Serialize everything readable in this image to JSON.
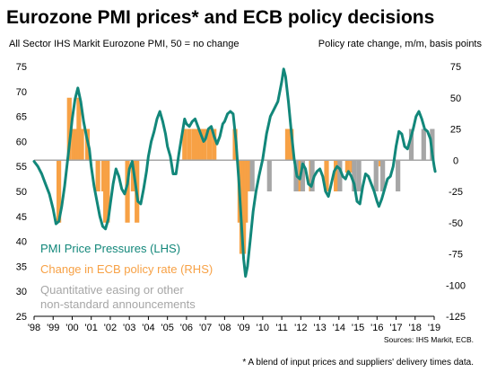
{
  "chart_data": {
    "type": "line",
    "title": "Eurozone PMI prices* and ECB policy decisions",
    "left_axis_label": "All Sector IHS Markit Eurozone PMI, 50 = no change",
    "right_axis_label": "Policy rate change, m/m, basis points",
    "left_ylim": [
      25,
      75
    ],
    "right_ylim": [
      -125,
      75
    ],
    "left_ticks": [
      "75",
      "70",
      "65",
      "60",
      "55",
      "50",
      "45",
      "40",
      "35",
      "30",
      "25"
    ],
    "right_ticks": [
      "75",
      "50",
      "25",
      "0",
      "-25",
      "-50",
      "-75",
      "-100",
      "-125"
    ],
    "x_ticks": [
      "'98",
      "'99",
      "'00",
      "'01",
      "'02",
      "'03",
      "'04",
      "'05",
      "'06",
      "'07",
      "'08",
      "'09",
      "'10",
      "'11",
      "'12",
      "'13",
      "'14",
      "'15",
      "'16",
      "'17",
      "'18",
      "'19"
    ],
    "x_range": [
      1998.0,
      2019.0
    ],
    "grid": false,
    "series": [
      {
        "name": "PMI  Price Pressures (LHS)",
        "color": "#12877a",
        "axis": "left",
        "points": [
          [
            1998.0,
            56.0
          ],
          [
            1998.2,
            55.0
          ],
          [
            1998.4,
            53.5
          ],
          [
            1998.6,
            51.5
          ],
          [
            1998.8,
            49.5
          ],
          [
            1999.0,
            46.5
          ],
          [
            1999.15,
            43.5
          ],
          [
            1999.3,
            44.0
          ],
          [
            1999.45,
            47.0
          ],
          [
            1999.6,
            51.0
          ],
          [
            1999.75,
            56.0
          ],
          [
            1999.9,
            61.0
          ],
          [
            2000.0,
            64.5
          ],
          [
            2000.15,
            68.5
          ],
          [
            2000.3,
            70.7
          ],
          [
            2000.45,
            68.0
          ],
          [
            2000.6,
            64.0
          ],
          [
            2000.75,
            61.0
          ],
          [
            2000.9,
            58.5
          ],
          [
            2001.0,
            55.0
          ],
          [
            2001.15,
            51.0
          ],
          [
            2001.3,
            48.0
          ],
          [
            2001.45,
            45.0
          ],
          [
            2001.6,
            43.0
          ],
          [
            2001.75,
            42.5
          ],
          [
            2001.9,
            44.5
          ],
          [
            2002.0,
            47.5
          ],
          [
            2002.15,
            51.5
          ],
          [
            2002.3,
            54.5
          ],
          [
            2002.45,
            53.0
          ],
          [
            2002.6,
            50.5
          ],
          [
            2002.75,
            49.5
          ],
          [
            2002.9,
            51.5
          ],
          [
            2003.0,
            54.5
          ],
          [
            2003.15,
            56.0
          ],
          [
            2003.3,
            52.0
          ],
          [
            2003.45,
            48.0
          ],
          [
            2003.6,
            47.5
          ],
          [
            2003.75,
            50.5
          ],
          [
            2003.9,
            54.0
          ],
          [
            2004.0,
            57.0
          ],
          [
            2004.15,
            60.0
          ],
          [
            2004.3,
            62.0
          ],
          [
            2004.45,
            64.5
          ],
          [
            2004.6,
            66.0
          ],
          [
            2004.75,
            64.0
          ],
          [
            2004.9,
            61.5
          ],
          [
            2005.0,
            59.0
          ],
          [
            2005.15,
            57.0
          ],
          [
            2005.3,
            53.5
          ],
          [
            2005.45,
            53.5
          ],
          [
            2005.6,
            57.5
          ],
          [
            2005.75,
            61.0
          ],
          [
            2005.9,
            64.5
          ],
          [
            2006.0,
            63.5
          ],
          [
            2006.15,
            63.0
          ],
          [
            2006.3,
            64.0
          ],
          [
            2006.45,
            64.5
          ],
          [
            2006.6,
            63.0
          ],
          [
            2006.75,
            61.5
          ],
          [
            2006.9,
            60.0
          ],
          [
            2007.0,
            60.5
          ],
          [
            2007.15,
            62.5
          ],
          [
            2007.3,
            63.0
          ],
          [
            2007.45,
            61.0
          ],
          [
            2007.6,
            59.5
          ],
          [
            2007.75,
            61.0
          ],
          [
            2007.9,
            63.5
          ],
          [
            2008.0,
            64.0
          ],
          [
            2008.15,
            65.5
          ],
          [
            2008.3,
            66.0
          ],
          [
            2008.45,
            65.5
          ],
          [
            2008.6,
            60.0
          ],
          [
            2008.75,
            52.0
          ],
          [
            2008.9,
            42.5
          ],
          [
            2009.0,
            36.5
          ],
          [
            2009.1,
            33.0
          ],
          [
            2009.2,
            35.0
          ],
          [
            2009.35,
            40.5
          ],
          [
            2009.5,
            46.0
          ],
          [
            2009.65,
            50.0
          ],
          [
            2009.8,
            53.0
          ],
          [
            2010.0,
            56.5
          ],
          [
            2010.2,
            61.5
          ],
          [
            2010.4,
            65.0
          ],
          [
            2010.6,
            66.5
          ],
          [
            2010.8,
            68.0
          ],
          [
            2011.0,
            72.0
          ],
          [
            2011.1,
            74.5
          ],
          [
            2011.2,
            73.0
          ],
          [
            2011.35,
            68.0
          ],
          [
            2011.5,
            62.0
          ],
          [
            2011.65,
            56.5
          ],
          [
            2011.8,
            53.0
          ],
          [
            2011.95,
            52.5
          ],
          [
            2012.1,
            55.5
          ],
          [
            2012.25,
            54.5
          ],
          [
            2012.4,
            51.5
          ],
          [
            2012.55,
            51.0
          ],
          [
            2012.7,
            53.0
          ],
          [
            2012.85,
            54.0
          ],
          [
            2013.0,
            54.5
          ],
          [
            2013.15,
            53.0
          ],
          [
            2013.3,
            50.0
          ],
          [
            2013.45,
            49.0
          ],
          [
            2013.6,
            51.5
          ],
          [
            2013.75,
            54.0
          ],
          [
            2013.9,
            55.0
          ],
          [
            2014.05,
            54.5
          ],
          [
            2014.2,
            53.0
          ],
          [
            2014.35,
            52.5
          ],
          [
            2014.5,
            54.0
          ],
          [
            2014.65,
            53.0
          ],
          [
            2014.8,
            51.5
          ],
          [
            2014.95,
            48.0
          ],
          [
            2015.1,
            47.5
          ],
          [
            2015.25,
            51.0
          ],
          [
            2015.4,
            53.5
          ],
          [
            2015.55,
            53.0
          ],
          [
            2015.7,
            51.5
          ],
          [
            2015.85,
            50.0
          ],
          [
            2016.0,
            48.0
          ],
          [
            2016.1,
            47.0
          ],
          [
            2016.25,
            48.5
          ],
          [
            2016.4,
            50.5
          ],
          [
            2016.55,
            52.5
          ],
          [
            2016.7,
            53.0
          ],
          [
            2016.85,
            55.0
          ],
          [
            2017.0,
            59.0
          ],
          [
            2017.15,
            62.0
          ],
          [
            2017.3,
            61.5
          ],
          [
            2017.45,
            59.0
          ],
          [
            2017.6,
            58.5
          ],
          [
            2017.75,
            60.5
          ],
          [
            2017.9,
            62.5
          ],
          [
            2018.05,
            65.0
          ],
          [
            2018.2,
            66.0
          ],
          [
            2018.35,
            64.5
          ],
          [
            2018.5,
            62.5
          ],
          [
            2018.65,
            62.0
          ],
          [
            2018.8,
            60.5
          ],
          [
            2018.9,
            57.5
          ],
          [
            2019.0,
            55.0
          ],
          [
            2019.05,
            54.0
          ]
        ]
      },
      {
        "name": "Change in ECB policy rate (RHS)",
        "color": "#f7a145",
        "axis": "right",
        "type": "bar",
        "bars": [
          [
            1999.3,
            -50
          ],
          [
            1999.85,
            50
          ],
          [
            2000.1,
            25
          ],
          [
            2000.25,
            25
          ],
          [
            2000.35,
            50
          ],
          [
            2000.5,
            25
          ],
          [
            2000.8,
            25
          ],
          [
            2001.35,
            -25
          ],
          [
            2001.65,
            -25
          ],
          [
            2001.75,
            -50
          ],
          [
            2001.85,
            -50
          ],
          [
            2002.9,
            -50
          ],
          [
            2003.2,
            -25
          ],
          [
            2003.4,
            -50
          ],
          [
            2005.9,
            25
          ],
          [
            2006.15,
            25
          ],
          [
            2006.4,
            25
          ],
          [
            2006.55,
            25
          ],
          [
            2006.75,
            25
          ],
          [
            2006.95,
            25
          ],
          [
            2007.2,
            25
          ],
          [
            2007.45,
            25
          ],
          [
            2008.55,
            25
          ],
          [
            2008.8,
            -50
          ],
          [
            2008.9,
            -75
          ],
          [
            2009.0,
            -75
          ],
          [
            2009.1,
            -50
          ],
          [
            2009.25,
            -25
          ],
          [
            2009.35,
            -25
          ],
          [
            2011.3,
            25
          ],
          [
            2011.5,
            25
          ],
          [
            2011.85,
            -25
          ],
          [
            2011.95,
            -25
          ],
          [
            2012.55,
            -25
          ],
          [
            2013.35,
            -25
          ],
          [
            2013.85,
            -25
          ],
          [
            2014.45,
            -10
          ],
          [
            2014.7,
            -10
          ],
          [
            2016.2,
            -5
          ]
        ]
      },
      {
        "name": "Quantitative easing or other non-standard announcements",
        "color": "#a6a6a6",
        "axis": "right",
        "type": "bar",
        "bars": [
          [
            2009.45,
            -25
          ],
          [
            2010.35,
            -25
          ],
          [
            2011.75,
            -25
          ],
          [
            2012.1,
            -25
          ],
          [
            2012.6,
            -25
          ],
          [
            2014.05,
            -25
          ],
          [
            2014.8,
            -25
          ],
          [
            2015.05,
            -25
          ],
          [
            2015.95,
            -25
          ],
          [
            2016.3,
            -25
          ],
          [
            2017.1,
            -25
          ],
          [
            2017.8,
            25
          ],
          [
            2018.45,
            25
          ],
          [
            2018.9,
            25
          ]
        ]
      }
    ]
  },
  "legend": {
    "pmi": "PMI  Price Pressures (LHS)",
    "ecb": "Change in ECB policy rate (RHS)",
    "qe_line1": "Quantitative easing or other",
    "qe_line2": "non-standard announcements"
  },
  "source": "Sources: IHS Markit, ECB.",
  "footnote": "* A blend of input prices and suppliers' delivery times data."
}
